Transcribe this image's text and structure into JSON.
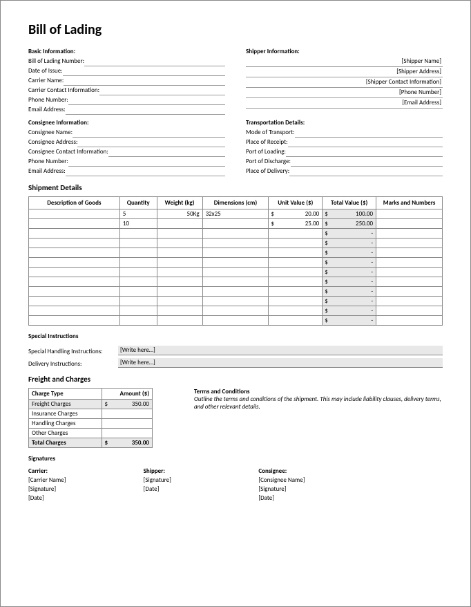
{
  "title": "Bill of Lading",
  "basic": {
    "heading": "Basic Information:",
    "fields": [
      {
        "label": "Bill of Lading Number:",
        "value": ""
      },
      {
        "label": "Date of Issue:",
        "value": ""
      },
      {
        "label": "Carrier Name:",
        "value": ""
      },
      {
        "label": "Carrier Contact Information:",
        "value": ""
      },
      {
        "label": "Phone Number:",
        "value": ""
      },
      {
        "label": "Email Address:",
        "value": ""
      }
    ]
  },
  "shipper": {
    "heading": "Shipper Information:",
    "fields": [
      {
        "label": "",
        "value": "[Shipper Name]"
      },
      {
        "label": "",
        "value": "[Shipper Address]"
      },
      {
        "label": "",
        "value": "[Shipper Contact Information]"
      },
      {
        "label": "",
        "value": "[Phone Number]"
      },
      {
        "label": "",
        "value": "[Email Address]"
      }
    ]
  },
  "consignee": {
    "heading": "Consignee Information:",
    "fields": [
      {
        "label": "Consignee Name:",
        "value": ""
      },
      {
        "label": "Consignee Address:",
        "value": ""
      },
      {
        "label": "Consignee Contact Information:",
        "value": ""
      },
      {
        "label": "Phone Number:",
        "value": ""
      },
      {
        "label": "Email Address:",
        "value": ""
      }
    ]
  },
  "transport": {
    "heading": "Transportation Details:",
    "fields": [
      {
        "label": "Mode of Transport:",
        "value": ""
      },
      {
        "label": "Place of Receipt:",
        "value": ""
      },
      {
        "label": "Port of Loading:",
        "value": ""
      },
      {
        "label": "Port of Discharge:",
        "value": ""
      },
      {
        "label": "Place of Delivery:",
        "value": ""
      }
    ]
  },
  "shipment": {
    "heading": "Shipment Details",
    "columns": [
      "Description of Goods",
      "Quantity",
      "Weight (kg)",
      "Dimensions (cm)",
      "Unit Value ($)",
      "Total Value ($)",
      "Marks and Numbers"
    ],
    "currency": "$",
    "rows": [
      {
        "desc": "",
        "qty": "5",
        "weight": "50Kg",
        "dim": "32x25",
        "unit": "20.00",
        "total": "100.00",
        "marks": ""
      },
      {
        "desc": "",
        "qty": "10",
        "weight": "",
        "dim": "",
        "unit": "25.00",
        "total": "250.00",
        "marks": ""
      },
      {
        "desc": "",
        "qty": "",
        "weight": "",
        "dim": "",
        "unit": "",
        "total": "-",
        "marks": ""
      },
      {
        "desc": "",
        "qty": "",
        "weight": "",
        "dim": "",
        "unit": "",
        "total": "-",
        "marks": ""
      },
      {
        "desc": "",
        "qty": "",
        "weight": "",
        "dim": "",
        "unit": "",
        "total": "-",
        "marks": ""
      },
      {
        "desc": "",
        "qty": "",
        "weight": "",
        "dim": "",
        "unit": "",
        "total": "-",
        "marks": ""
      },
      {
        "desc": "",
        "qty": "",
        "weight": "",
        "dim": "",
        "unit": "",
        "total": "-",
        "marks": ""
      },
      {
        "desc": "",
        "qty": "",
        "weight": "",
        "dim": "",
        "unit": "",
        "total": "-",
        "marks": ""
      },
      {
        "desc": "",
        "qty": "",
        "weight": "",
        "dim": "",
        "unit": "",
        "total": "-",
        "marks": ""
      },
      {
        "desc": "",
        "qty": "",
        "weight": "",
        "dim": "",
        "unit": "",
        "total": "-",
        "marks": ""
      },
      {
        "desc": "",
        "qty": "",
        "weight": "",
        "dim": "",
        "unit": "",
        "total": "-",
        "marks": ""
      },
      {
        "desc": "",
        "qty": "",
        "weight": "",
        "dim": "",
        "unit": "",
        "total": "-",
        "marks": ""
      }
    ]
  },
  "instructions": {
    "heading": "Special Instructions",
    "rows": [
      {
        "label": "Special Handling Instructions:",
        "value": "[Write here…]"
      },
      {
        "label": "Delivery Instructions:",
        "value": "[Write here…]"
      }
    ]
  },
  "freight": {
    "heading": "Freight and Charges",
    "columns": [
      "Charge Type",
      "Amount ($)"
    ],
    "currency": "$",
    "rows": [
      {
        "label": "Freight Charges",
        "amount": "350.00",
        "shade": true
      },
      {
        "label": "Insurance Charges",
        "amount": "",
        "shade": false
      },
      {
        "label": "Handling Charges",
        "amount": "",
        "shade": false
      },
      {
        "label": "Other Charges",
        "amount": "",
        "shade": false
      }
    ],
    "total": {
      "label": "Total Charges",
      "amount": "350.00"
    }
  },
  "terms": {
    "heading": "Terms and Conditions",
    "text": "Outline the terms and conditions of the shipment. This may include liability clauses, delivery terms, and other relevant details."
  },
  "signatures": {
    "heading": "Signatures",
    "cols": [
      {
        "heading": "Carrier:",
        "lines": [
          "[Carrier Name]",
          "[Signature]",
          "[Date]"
        ]
      },
      {
        "heading": "Shipper:",
        "lines": [
          "[Signature]",
          "[Date]"
        ]
      },
      {
        "heading": "Consignee:",
        "lines": [
          "[Consignee Name]",
          "[Signature]",
          "[Date]"
        ]
      }
    ]
  },
  "colors": {
    "shade": "#e8e8e8",
    "border": "#888888",
    "text": "#000000"
  }
}
